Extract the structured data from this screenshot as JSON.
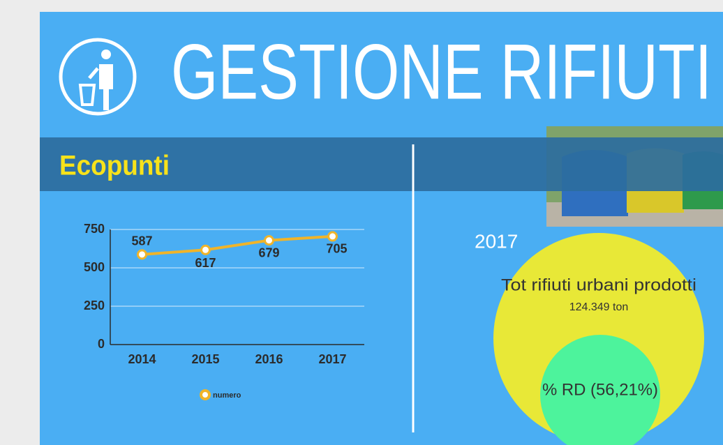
{
  "header": {
    "title": "GESTIONE RIFIUTI"
  },
  "section": {
    "title": "Ecopunti"
  },
  "chart_data": {
    "type": "line",
    "categories": [
      "2014",
      "2015",
      "2016",
      "2017"
    ],
    "series": [
      {
        "name": "numero",
        "color": "#f0b429",
        "values": [
          587,
          617,
          679,
          705
        ]
      }
    ],
    "ylim": [
      0,
      750
    ],
    "yticks": [
      0,
      250,
      500,
      750
    ],
    "grid": true,
    "legend": "bottom"
  },
  "summary": {
    "year": "2017",
    "total_label": "Tot rifiuti urbani prodotti",
    "total_value": "124.349 ton",
    "rd_label": "% RD (56,21%)"
  }
}
